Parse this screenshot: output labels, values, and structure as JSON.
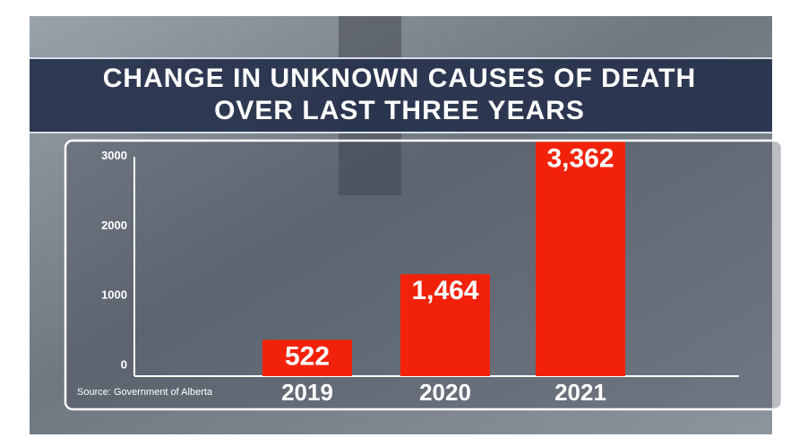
{
  "chart_data": {
    "type": "bar",
    "title": "CHANGE IN UNKNOWN CAUSES OF DEATH OVER LAST THREE YEARS",
    "source": "Source: Government of Alberta",
    "categories": [
      "2019",
      "2020",
      "2021"
    ],
    "values": [
      522,
      1464,
      3362
    ],
    "value_labels": [
      "522",
      "1,464",
      "3,362"
    ],
    "color": "#f2220a",
    "ylim": [
      0,
      3150
    ],
    "yticks": [
      0,
      1000,
      2000,
      3000
    ],
    "grid": false
  }
}
